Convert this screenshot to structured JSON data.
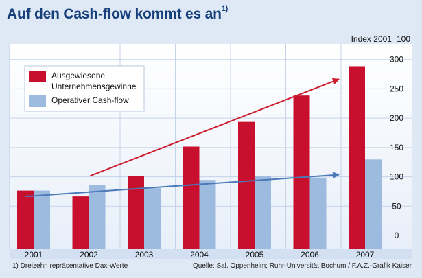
{
  "title": "Auf den Cash-flow kommt es an",
  "title_sup": "1)",
  "index_label": "Index 2001=100",
  "footnote": "1) Dreizehn repräsentative Dax-Werte",
  "source": "Quelle: Sal. Oppenheim; Ruhr-Universität Bochum / F.A.Z.-Grafik Kaiser",
  "colors": {
    "red": "#c8102e",
    "blue": "#9dbadf",
    "arrow_red": "#cc1c2c",
    "arrow_blue": "#4a78b8",
    "background": "#dfe9f6",
    "title": "#173f7a"
  },
  "chart_data": {
    "type": "bar",
    "categories": [
      "2001",
      "2002",
      "2003",
      "2004",
      "2005",
      "2006",
      "2007"
    ],
    "series": [
      {
        "name": "Ausgewiesene Unternehmensgewinne",
        "values": [
          100,
          90,
          125,
          175,
          217,
          262,
          312
        ]
      },
      {
        "name": "Operativer Cash-flow",
        "values": [
          100,
          110,
          104,
          118,
          124,
          122,
          153
        ]
      }
    ],
    "legend_lines": [
      [
        "Ausgewiesene",
        "Unternehmensgewinne"
      ],
      [
        "Operativer Cash-flow"
      ]
    ],
    "ylim": [
      0,
      350
    ],
    "yticks": [
      0,
      50,
      100,
      150,
      200,
      250,
      300
    ],
    "ylabel": "Index 2001=100",
    "grid": true,
    "legend": "top-left",
    "trend_arrows": [
      {
        "series": "Ausgewiesene Unternehmensgewinne",
        "from": [
          "2002",
          125
        ],
        "to": [
          "2007",
          290
        ]
      },
      {
        "series": "Operativer Cash-flow",
        "from": [
          "2001",
          90
        ],
        "to": [
          "2007",
          127
        ]
      }
    ]
  }
}
